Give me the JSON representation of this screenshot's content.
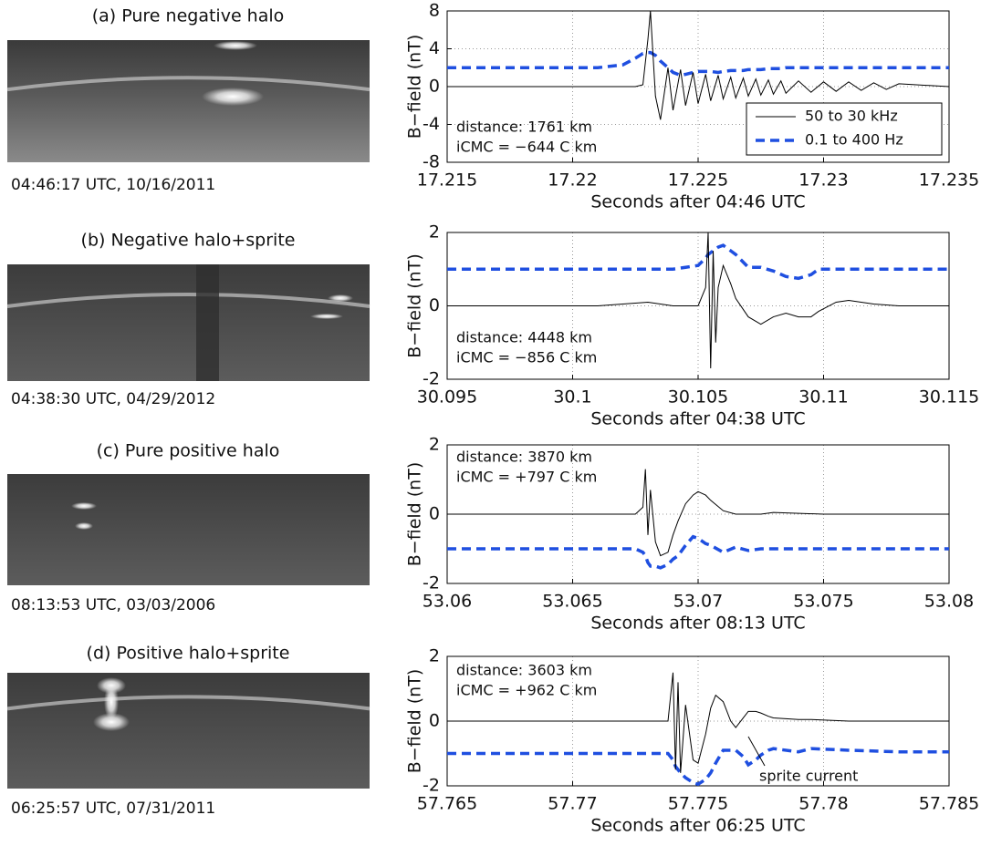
{
  "chart_data": [
    {
      "type": "line",
      "title": "(a) Pure negative halo",
      "caption": "04:46:17 UTC, 10/16/2011",
      "xlabel": "Seconds after 04:46 UTC",
      "ylabel": "B−field (nT)",
      "annotations": [
        "distance: 1761 km",
        "iCMC = −644 C km"
      ],
      "xlim": [
        17.215,
        17.235
      ],
      "xticks": [
        17.215,
        17.22,
        17.225,
        17.23,
        17.235
      ],
      "ylim": [
        -8,
        8
      ],
      "yticks": [
        -8,
        -4,
        0,
        4,
        8
      ],
      "grid": true,
      "legend": "lower right",
      "x": [
        17.215,
        17.217,
        17.219,
        17.221,
        17.222,
        17.2225,
        17.2228,
        17.223,
        17.2231,
        17.2233,
        17.2235,
        17.2238,
        17.224,
        17.2243,
        17.2245,
        17.2248,
        17.225,
        17.2253,
        17.2255,
        17.2258,
        17.226,
        17.2263,
        17.2265,
        17.2268,
        17.227,
        17.2273,
        17.2275,
        17.2278,
        17.228,
        17.2283,
        17.2285,
        17.229,
        17.2295,
        17.23,
        17.2305,
        17.231,
        17.2315,
        17.232,
        17.2325,
        17.233,
        17.235
      ],
      "series": [
        {
          "name": "50 to 30 kHz",
          "color": "#000000",
          "values": [
            0,
            0,
            0,
            0,
            0,
            0,
            0.2,
            5,
            8,
            -1,
            -3.5,
            2,
            -2.5,
            1.8,
            -2,
            1.5,
            -1.8,
            1.3,
            -1.5,
            1.2,
            -1.3,
            1,
            -1.2,
            0.9,
            -1,
            0.8,
            -0.9,
            0.7,
            -0.8,
            0.6,
            -0.7,
            0.6,
            -0.6,
            0.5,
            -0.5,
            0.5,
            -0.4,
            0.4,
            -0.3,
            0.3,
            0
          ]
        },
        {
          "name": "0.1 to 400 Hz",
          "color": "#1f4fe0",
          "values": [
            2,
            2,
            2,
            2,
            2.3,
            3,
            3.5,
            3.6,
            3.6,
            3.3,
            2.7,
            2,
            1.5,
            1.2,
            1.3,
            1.5,
            1.6,
            1.6,
            1.6,
            1.5,
            1.6,
            1.7,
            1.7,
            1.7,
            1.8,
            1.8,
            1.8,
            1.9,
            1.9,
            1.9,
            2,
            2,
            2,
            2,
            2,
            2,
            2,
            2,
            2,
            2,
            2
          ]
        }
      ]
    },
    {
      "type": "line",
      "title": "(b) Negative halo+sprite",
      "caption": "04:38:30 UTC, 04/29/2012",
      "xlabel": "Seconds after 04:38 UTC",
      "ylabel": "B−field (nT)",
      "annotations": [
        "distance: 4448 km",
        "iCMC = −856 C km"
      ],
      "xlim": [
        30.095,
        30.115
      ],
      "xticks": [
        30.095,
        30.1,
        30.105,
        30.11,
        30.115
      ],
      "ylim": [
        -2,
        2
      ],
      "yticks": [
        -2,
        0,
        2
      ],
      "grid": true,
      "x": [
        30.095,
        30.097,
        30.099,
        30.101,
        30.103,
        30.104,
        30.1045,
        30.105,
        30.1053,
        30.1054,
        30.1055,
        30.1056,
        30.1057,
        30.1058,
        30.106,
        30.1063,
        30.1065,
        30.107,
        30.1075,
        30.108,
        30.1085,
        30.109,
        30.1095,
        30.1098,
        30.1105,
        30.111,
        30.112,
        30.113,
        30.115
      ],
      "series": [
        {
          "color": "#000000",
          "values": [
            0,
            0,
            0,
            0,
            0.1,
            0,
            0,
            0,
            0.5,
            2,
            -1.7,
            1.5,
            -1,
            0.5,
            1.1,
            0.6,
            0.2,
            -0.3,
            -0.5,
            -0.3,
            -0.2,
            -0.3,
            -0.3,
            -0.15,
            0.1,
            0.15,
            0.05,
            0,
            0
          ]
        },
        {
          "color": "#1f4fe0",
          "values": [
            1,
            1,
            1,
            1,
            1,
            1,
            1.05,
            1.1,
            1.3,
            1.4,
            1.45,
            1.5,
            1.55,
            1.6,
            1.65,
            1.5,
            1.4,
            1.05,
            1.05,
            0.95,
            0.8,
            0.75,
            0.85,
            1,
            1,
            1,
            1,
            1,
            1
          ]
        }
      ]
    },
    {
      "type": "line",
      "title": "(c) Pure positive halo",
      "caption": "08:13:53 UTC, 03/03/2006",
      "xlabel": "Seconds after 08:13 UTC",
      "ylabel": "B−field (nT)",
      "annotations": [
        "distance: 3870 km",
        "iCMC = +797 C km"
      ],
      "xlim": [
        53.06,
        53.08
      ],
      "xticks": [
        53.06,
        53.065,
        53.07,
        53.075,
        53.08
      ],
      "ylim": [
        -2,
        2
      ],
      "yticks": [
        -2,
        0,
        2
      ],
      "grid": true,
      "x": [
        53.06,
        53.062,
        53.064,
        53.066,
        53.0675,
        53.0678,
        53.0679,
        53.068,
        53.0681,
        53.0683,
        53.0685,
        53.0688,
        53.069,
        53.0692,
        53.0695,
        53.0698,
        53.07,
        53.0703,
        53.0705,
        53.071,
        53.0715,
        53.072,
        53.0725,
        53.073,
        53.075,
        53.077,
        53.08
      ],
      "series": [
        {
          "color": "#000000",
          "values": [
            0,
            0,
            0,
            0,
            0,
            0.2,
            1.3,
            -0.6,
            0.7,
            -0.8,
            -1.2,
            -1.1,
            -0.6,
            -0.2,
            0.3,
            0.55,
            0.65,
            0.55,
            0.4,
            0.1,
            0,
            0,
            0,
            0.05,
            0,
            0,
            0
          ]
        },
        {
          "color": "#1f4fe0",
          "values": [
            -1,
            -1,
            -1,
            -1,
            -1,
            -1.1,
            -1.2,
            -1.4,
            -1.5,
            -1.5,
            -1.55,
            -1.45,
            -1.3,
            -1.2,
            -0.9,
            -0.65,
            -0.7,
            -0.85,
            -0.9,
            -1.1,
            -0.95,
            -1.05,
            -1,
            -1,
            -1,
            -1,
            -1
          ]
        }
      ]
    },
    {
      "type": "line",
      "title": "(d) Positive halo+sprite",
      "caption": "06:25:57 UTC, 07/31/2011",
      "xlabel": "Seconds after 06:25 UTC",
      "ylabel": "B−field (nT)",
      "annotations": [
        "distance: 3603 km",
        "iCMC = +962 C km",
        "sprite current"
      ],
      "xlim": [
        57.765,
        57.785
      ],
      "xticks": [
        57.765,
        57.77,
        57.775,
        57.78,
        57.785
      ],
      "ylim": [
        -2,
        2
      ],
      "yticks": [
        -2,
        0,
        2
      ],
      "grid": true,
      "x": [
        57.765,
        57.767,
        57.769,
        57.771,
        57.773,
        57.7738,
        57.774,
        57.7741,
        57.7742,
        57.7743,
        57.7745,
        57.7748,
        57.775,
        57.7753,
        57.7755,
        57.7757,
        57.776,
        57.7763,
        57.7765,
        57.7768,
        57.777,
        57.7773,
        57.7775,
        57.7778,
        57.778,
        57.779,
        57.7795,
        57.781,
        57.783,
        57.785
      ],
      "series": [
        {
          "color": "#000000",
          "values": [
            0,
            0,
            0,
            0,
            0,
            0,
            1.5,
            -1.5,
            1.2,
            -1.6,
            0.5,
            -1.2,
            -1.3,
            -0.4,
            0.4,
            0.8,
            0.6,
            0,
            -0.2,
            0.1,
            0.3,
            0.3,
            0.25,
            0.15,
            0.1,
            0.05,
            0.05,
            0,
            0,
            0
          ]
        },
        {
          "color": "#1f4fe0",
          "values": [
            -1,
            -1,
            -1,
            -1,
            -1,
            -1,
            -1.2,
            -1.4,
            -1.5,
            -1.6,
            -1.75,
            -1.9,
            -1.95,
            -1.8,
            -1.6,
            -1.3,
            -0.9,
            -0.9,
            -0.9,
            -1.1,
            -1.35,
            -1.2,
            -1.05,
            -0.9,
            -0.85,
            -0.95,
            -0.85,
            -0.9,
            -0.95,
            -0.95
          ]
        }
      ]
    }
  ]
}
